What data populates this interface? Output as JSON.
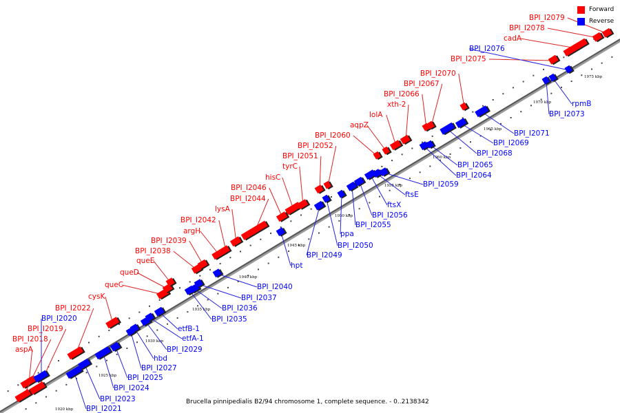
{
  "caption": "Brucella pinnipedialis B2/94 chromosome 1, complete sequence. - 0..2138342",
  "legend": [
    {
      "label": "Forward",
      "color": "#ff0000"
    },
    {
      "label": "Reverse",
      "color": "#0000ff"
    }
  ],
  "colors": {
    "forward": "#ff0000",
    "reverse": "#0000ff",
    "forward_line": "#dd2222",
    "reverse_line": "#2222dd"
  },
  "ticks": [
    "1920 kbp",
    "1925 kbp",
    "1930 kbp",
    "1935 kbp",
    "1940 kbp",
    "1945 kbp",
    "1950 kbp",
    "1955 kbp",
    "1960 kbp",
    "1965 kbp",
    "1970 kbp",
    "1975 kbp"
  ],
  "genes": [
    {
      "name": "aspA",
      "strand": "forward"
    },
    {
      "name": "BPI_I2018",
      "strand": "forward"
    },
    {
      "name": "BPI_I2019",
      "strand": "forward"
    },
    {
      "name": "BPI_I2020",
      "strand": "reverse"
    },
    {
      "name": "BPI_I2022",
      "strand": "forward"
    },
    {
      "name": "BPI_I2021",
      "strand": "reverse"
    },
    {
      "name": "BPI_I2023",
      "strand": "reverse"
    },
    {
      "name": "BPI_I2024",
      "strand": "reverse"
    },
    {
      "name": "BPI_I2025",
      "strand": "reverse"
    },
    {
      "name": "cysK",
      "strand": "forward"
    },
    {
      "name": "BPI_I2027",
      "strand": "reverse"
    },
    {
      "name": "hbd",
      "strand": "reverse"
    },
    {
      "name": "BPI_I2029",
      "strand": "reverse"
    },
    {
      "name": "etfA-1",
      "strand": "reverse"
    },
    {
      "name": "etfB-1",
      "strand": "reverse"
    },
    {
      "name": "queC",
      "strand": "forward"
    },
    {
      "name": "queD",
      "strand": "forward"
    },
    {
      "name": "queE",
      "strand": "forward"
    },
    {
      "name": "BPI_I2035",
      "strand": "reverse"
    },
    {
      "name": "BPI_I2036",
      "strand": "reverse"
    },
    {
      "name": "BPI_I2037",
      "strand": "reverse"
    },
    {
      "name": "BPI_I2038",
      "strand": "forward"
    },
    {
      "name": "BPI_I2039",
      "strand": "forward"
    },
    {
      "name": "BPI_I2040",
      "strand": "reverse"
    },
    {
      "name": "argH",
      "strand": "forward"
    },
    {
      "name": "BPI_I2042",
      "strand": "forward"
    },
    {
      "name": "lysA",
      "strand": "forward"
    },
    {
      "name": "BPI_I2044",
      "strand": "forward"
    },
    {
      "name": "hpt",
      "strand": "reverse"
    },
    {
      "name": "BPI_I2046",
      "strand": "forward"
    },
    {
      "name": "hisC",
      "strand": "forward"
    },
    {
      "name": "BPI_I2049",
      "strand": "reverse"
    },
    {
      "name": "BPI_I2050",
      "strand": "reverse"
    },
    {
      "name": "tyrC",
      "strand": "forward"
    },
    {
      "name": "BPI_I2051",
      "strand": "forward"
    },
    {
      "name": "BPI_I2052",
      "strand": "forward"
    },
    {
      "name": "ppa",
      "strand": "reverse"
    },
    {
      "name": "BPI_I2055",
      "strand": "reverse"
    },
    {
      "name": "BPI_I2056",
      "strand": "reverse"
    },
    {
      "name": "ftsX",
      "strand": "reverse"
    },
    {
      "name": "ftsE",
      "strand": "reverse"
    },
    {
      "name": "BPI_I2059",
      "strand": "reverse"
    },
    {
      "name": "BPI_I2060",
      "strand": "forward"
    },
    {
      "name": "aqpZ",
      "strand": "forward"
    },
    {
      "name": "lolA",
      "strand": "forward"
    },
    {
      "name": "xth-2",
      "strand": "forward"
    },
    {
      "name": "BPI_I2064",
      "strand": "reverse"
    },
    {
      "name": "BPI_I2065",
      "strand": "reverse"
    },
    {
      "name": "BPI_I2066",
      "strand": "forward"
    },
    {
      "name": "BPI_I2067",
      "strand": "forward"
    },
    {
      "name": "BPI_I2068",
      "strand": "reverse"
    },
    {
      "name": "BPI_I2069",
      "strand": "reverse"
    },
    {
      "name": "BPI_I2070",
      "strand": "forward"
    },
    {
      "name": "BPI_I2071",
      "strand": "reverse"
    },
    {
      "name": "BPI_I2073",
      "strand": "reverse"
    },
    {
      "name": "rpmB",
      "strand": "reverse"
    },
    {
      "name": "BPI_I2075",
      "strand": "forward"
    },
    {
      "name": "BPI_I2076",
      "strand": "reverse"
    },
    {
      "name": "cadA",
      "strand": "forward"
    },
    {
      "name": "BPI_I2078",
      "strand": "forward"
    },
    {
      "name": "BPI_I2079",
      "strand": "forward"
    }
  ]
}
